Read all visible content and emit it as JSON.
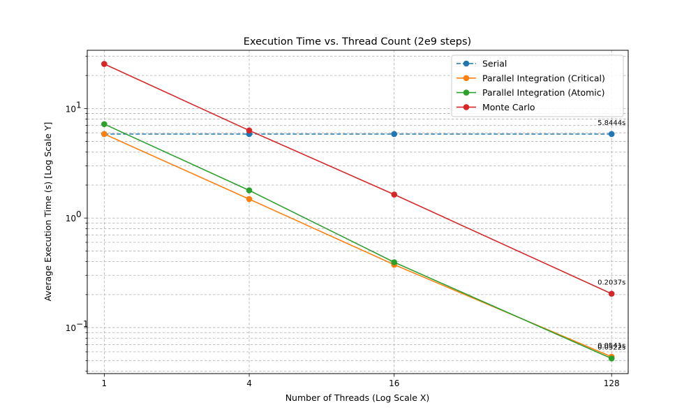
{
  "chart_data": {
    "type": "line",
    "title": "Execution Time vs. Thread Count (2e9 steps)",
    "xlabel": "Number of Threads (Log Scale X)",
    "ylabel": "Average Execution Time (s) [Log Scale Y]",
    "x_scale": "log2",
    "y_scale": "log10",
    "xlim": [
      0.85,
      150
    ],
    "ylim": [
      0.038,
      34
    ],
    "x_ticks": [
      1,
      4,
      16,
      128
    ],
    "x_tick_labels": [
      "1",
      "4",
      "16",
      "128"
    ],
    "y_ticks": [
      0.1,
      1,
      10
    ],
    "y_tick_labels": [
      "10",
      "10",
      "10"
    ],
    "y_tick_exponents": [
      "−1",
      "0",
      "1"
    ],
    "grid": true,
    "legend_position": "top-right",
    "series": [
      {
        "name": "Serial",
        "x": [
          1,
          4,
          16,
          128
        ],
        "values": [
          5.8444,
          5.8444,
          5.8444,
          5.8444
        ],
        "color": "#1f77b4",
        "dashed": true
      },
      {
        "name": "Parallel Integration (Critical)",
        "x": [
          1,
          4,
          16,
          128
        ],
        "values": [
          5.85,
          1.49,
          0.375,
          0.0541
        ],
        "color": "#ff7f0e",
        "dashed": false
      },
      {
        "name": "Parallel Integration (Atomic)",
        "x": [
          1,
          4,
          16,
          128
        ],
        "values": [
          7.2,
          1.79,
          0.395,
          0.0522
        ],
        "color": "#2ca02c",
        "dashed": false
      },
      {
        "name": "Monte Carlo",
        "x": [
          1,
          4,
          16,
          128
        ],
        "values": [
          25.5,
          6.3,
          1.64,
          0.2037
        ],
        "color": "#d62728",
        "dashed": false
      }
    ],
    "annotations": [
      {
        "text": "5.8444s",
        "x": 128,
        "y": 5.8444
      },
      {
        "text": "0.0541s",
        "x": 128,
        "y": 0.0541
      },
      {
        "text": "0.0522s",
        "x": 128,
        "y": 0.0522
      },
      {
        "text": "0.2037s",
        "x": 128,
        "y": 0.2037
      }
    ]
  }
}
